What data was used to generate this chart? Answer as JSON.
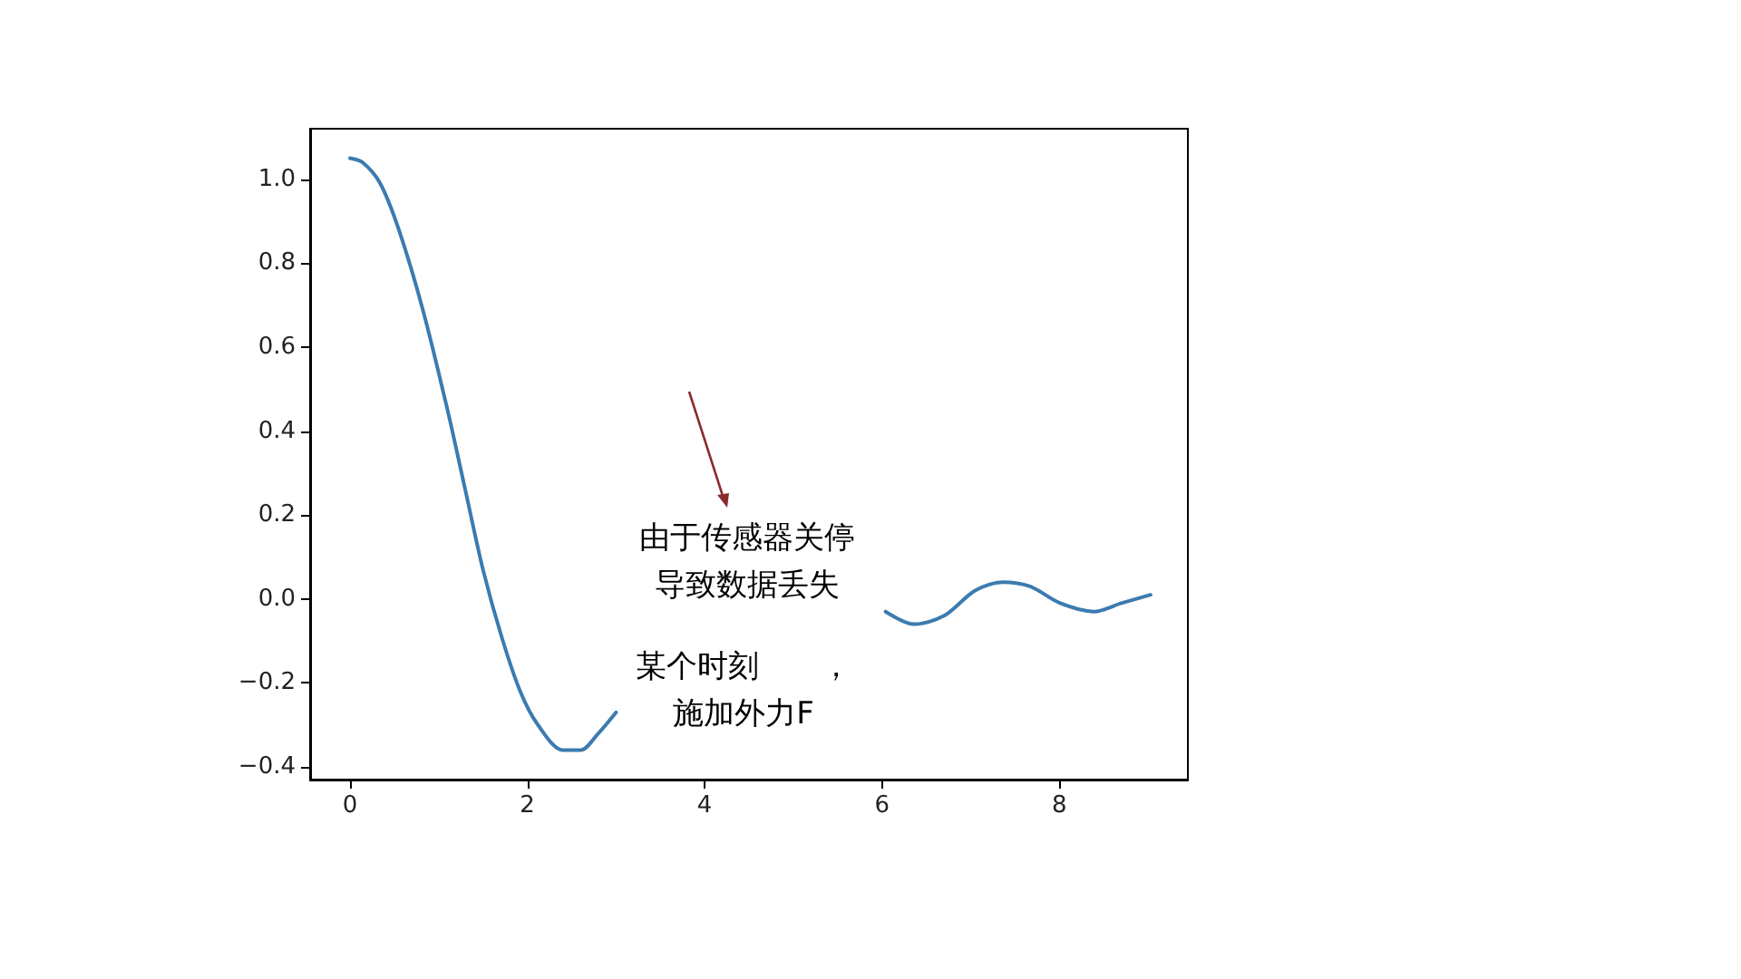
{
  "chart_data": {
    "type": "line",
    "marker": "none",
    "line_style": "solid",
    "series": [
      {
        "x": [
          0,
          0.14,
          0.34,
          0.55,
          0.82,
          1.1,
          1.3,
          1.5,
          1.71,
          1.92,
          2.12,
          2.4,
          2.6,
          2.8,
          3.0
        ],
        "values": [
          1.05,
          1.04,
          0.99,
          0.88,
          0.69,
          0.45,
          0.26,
          0.07,
          -0.09,
          -0.22,
          -0.3,
          -0.36,
          -0.36,
          -0.32,
          -0.27
        ],
        "color": "#3b7bb0"
      },
      {
        "x": [
          6.04,
          6.36,
          6.7,
          7.05,
          7.36,
          7.67,
          8.01,
          8.39,
          8.7,
          9.03
        ],
        "values": [
          -0.03,
          -0.06,
          -0.04,
          0.02,
          0.04,
          0.03,
          -0.01,
          -0.03,
          -0.01,
          0.01
        ],
        "color": "#3b7bb0"
      }
    ],
    "xlim": [
      -0.45,
      9.45
    ],
    "xticks": [
      0,
      2,
      4,
      6,
      8
    ],
    "ylim": [
      -0.43,
      1.12
    ],
    "yticks": [
      {
        "value": -0.4,
        "label": "−0.4"
      },
      {
        "value": -0.2,
        "label": "−0.2"
      },
      {
        "value": 0,
        "label": "0.0"
      },
      {
        "value": 0.2,
        "label": "0.2"
      },
      {
        "value": 0.4,
        "label": "0.4"
      },
      {
        "value": 0.6,
        "label": "0.6"
      },
      {
        "value": 0.8,
        "label": "0.8"
      },
      {
        "value": 1,
        "label": "1.0"
      }
    ],
    "annotations": [
      "由于传感器关停导致数据丢失",
      "某个时刻　　，施加外力F"
    ]
  }
}
